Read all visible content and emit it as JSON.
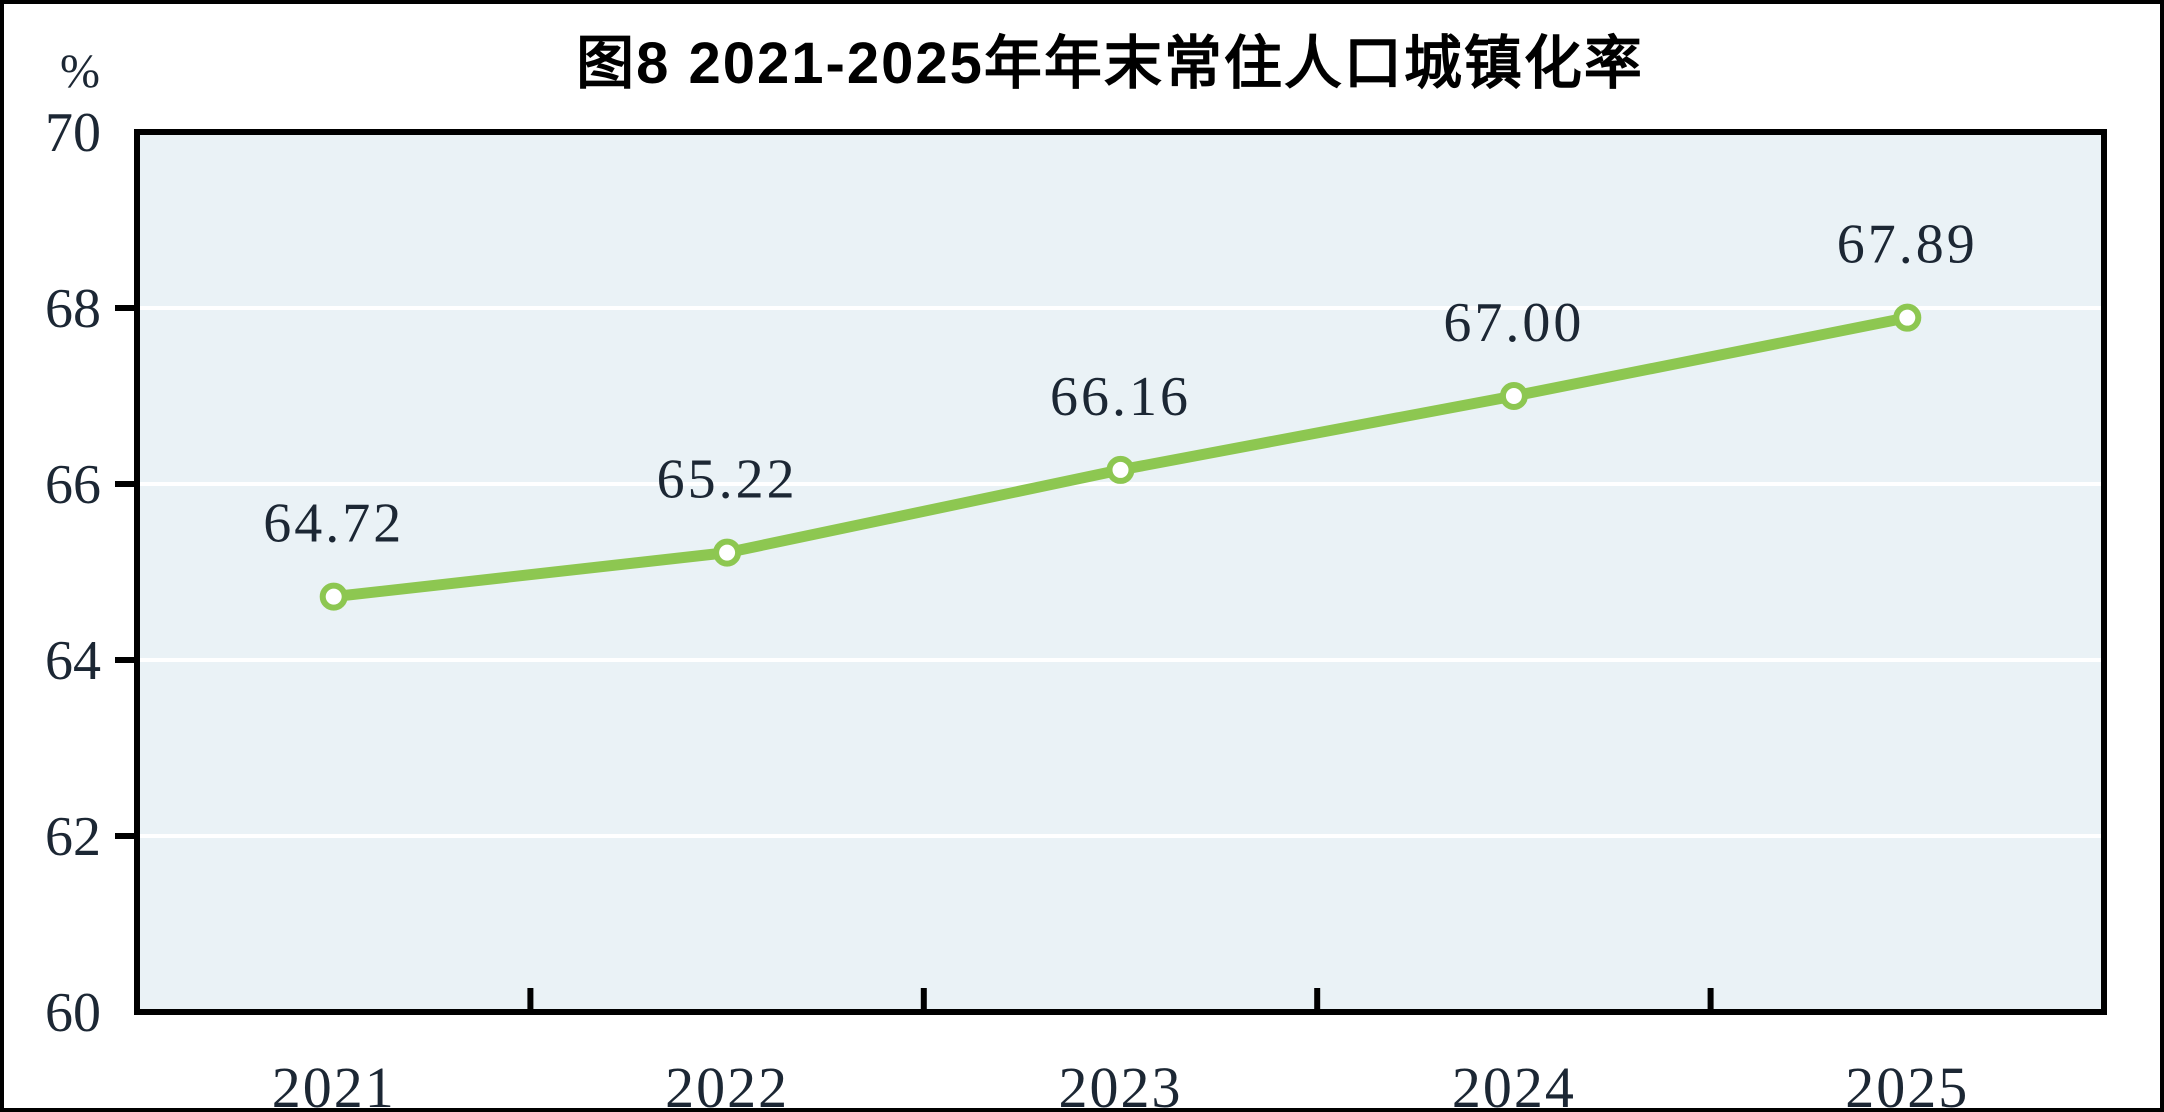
{
  "page": {
    "title": "图8  2021-2025年年末常住人口城镇化率",
    "unit_label": "%"
  },
  "chart_data": {
    "type": "line",
    "title": "图8  2021-2025年年末常住人口城镇化率",
    "unit": "%",
    "categories": [
      "2021",
      "2022",
      "2023",
      "2024",
      "2025"
    ],
    "values": [
      64.72,
      65.22,
      66.16,
      67.0,
      67.89
    ],
    "data_labels": [
      "64.72",
      "65.22",
      "66.16",
      "67.00",
      "67.89"
    ],
    "ylim": [
      60,
      70
    ],
    "y_ticks": [
      70,
      68,
      66,
      64,
      62,
      60
    ],
    "y_tick_step": 2,
    "grid": true,
    "legend": "none",
    "colors": {
      "line": "#8dc751",
      "marker_fill": "#ffffff",
      "marker_stroke": "#8dc751",
      "plot_bg": "#eaf2f6",
      "gridline": "#ffffff",
      "axis": "#000000",
      "labels": "#1c2734",
      "title": "#000000"
    }
  }
}
